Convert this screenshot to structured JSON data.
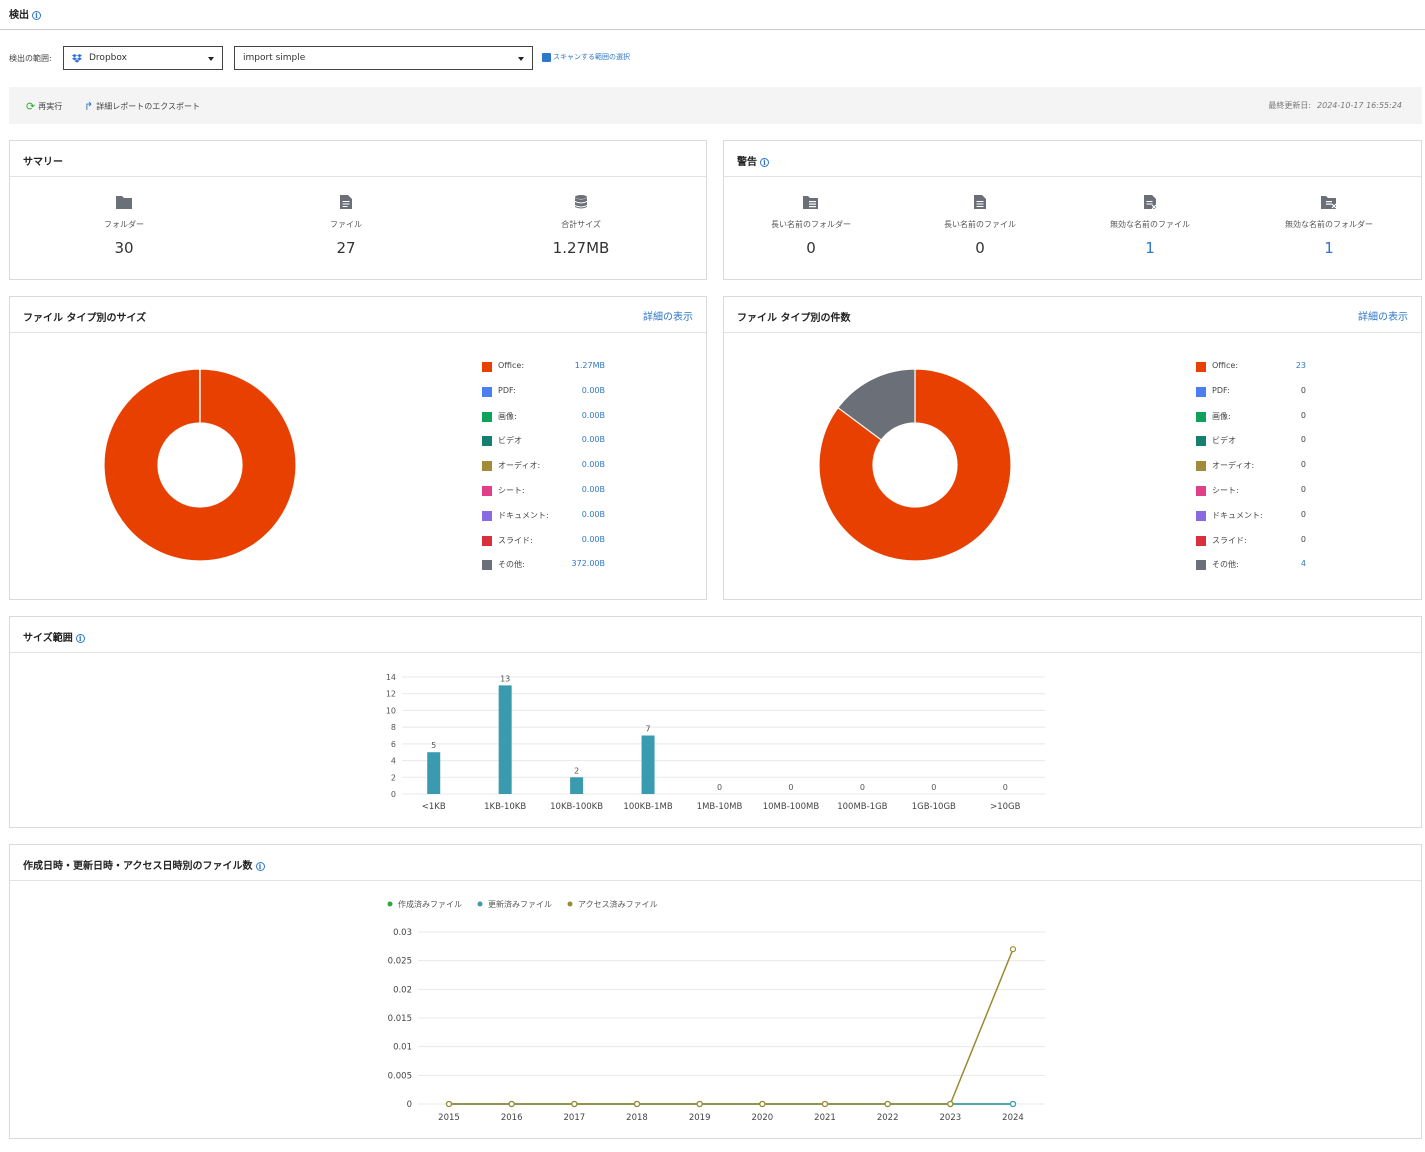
{
  "header": {
    "title": "検出"
  },
  "scope": {
    "label": "検出の範囲:",
    "source_select": "Dropbox",
    "job_select": "import simple",
    "scan_link": "スキャンする範囲の選択"
  },
  "toolbar": {
    "rerun_label": "再実行",
    "export_label": "詳細レポートのエクスポート",
    "last_updated_label": "最終更新日:",
    "last_updated_value": "2024-10-17 16:55:24"
  },
  "summary": {
    "title": "サマリー",
    "items": [
      {
        "label": "フォルダー",
        "value": "30",
        "icon": "folder-icon"
      },
      {
        "label": "ファイル",
        "value": "27",
        "icon": "file-icon"
      },
      {
        "label": "合計サイズ",
        "value": "1.27MB",
        "icon": "database-icon"
      }
    ]
  },
  "warnings": {
    "title": "警告",
    "items": [
      {
        "label": "長い名前のフォルダー",
        "value": "0",
        "icon": "long-name-folder-icon"
      },
      {
        "label": "長い名前のファイル",
        "value": "0",
        "icon": "long-name-file-icon"
      },
      {
        "label": "無効な名前のファイル",
        "value": "1",
        "icon": "invalid-name-file-icon"
      },
      {
        "label": "無効な名前のフォルダー",
        "value": "1",
        "icon": "invalid-name-folder-icon"
      }
    ]
  },
  "size_by_type": {
    "title": "ファイル タイプ別のサイズ",
    "link": "詳細の表示"
  },
  "count_by_type": {
    "title": "ファイル タイプ別の件数",
    "link": "詳細の表示"
  },
  "file_types": [
    {
      "name": "Office:",
      "color": "#e84000",
      "size": "1.27MB",
      "count": "23"
    },
    {
      "name": "PDF:",
      "color": "#4b7ff0",
      "size": "0.00B",
      "count": "0"
    },
    {
      "name": "画像:",
      "color": "#0fa05a",
      "size": "0.00B",
      "count": "0"
    },
    {
      "name": "ビデオ",
      "color": "#15806f",
      "size": "0.00B",
      "count": "0"
    },
    {
      "name": "オーディオ:",
      "color": "#a38a3a",
      "size": "0.00B",
      "count": "0"
    },
    {
      "name": "シート:",
      "color": "#e0408a",
      "size": "0.00B",
      "count": "0"
    },
    {
      "name": "ドキュメント:",
      "color": "#8a6ae0",
      "size": "0.00B",
      "count": "0"
    },
    {
      "name": "スライド:",
      "color": "#d8303c",
      "size": "0.00B",
      "count": "0"
    },
    {
      "name": "その他:",
      "color": "#6b7078",
      "size": "372.00B",
      "count": "4"
    }
  ],
  "size_range": {
    "title": "サイズ範囲"
  },
  "timeline": {
    "title": "作成日時・更新日時・アクセス日時別のファイル数"
  },
  "chart_data": [
    {
      "type": "pie",
      "title": "ファイル タイプ別のサイズ",
      "categories": [
        "Office",
        "PDF",
        "画像",
        "ビデオ",
        "オーディオ",
        "シート",
        "ドキュメント",
        "スライド",
        "その他"
      ],
      "values": [
        1270000,
        0,
        0,
        0,
        0,
        0,
        0,
        0,
        372
      ],
      "colors": [
        "#e84000",
        "#4b7ff0",
        "#0fa05a",
        "#15806f",
        "#a38a3a",
        "#e0408a",
        "#8a6ae0",
        "#d8303c",
        "#6b7078"
      ]
    },
    {
      "type": "pie",
      "title": "ファイル タイプ別の件数",
      "categories": [
        "Office",
        "PDF",
        "画像",
        "ビデオ",
        "オーディオ",
        "シート",
        "ドキュメント",
        "スライド",
        "その他"
      ],
      "values": [
        23,
        0,
        0,
        0,
        0,
        0,
        0,
        0,
        4
      ],
      "colors": [
        "#e84000",
        "#4b7ff0",
        "#0fa05a",
        "#15806f",
        "#a38a3a",
        "#e0408a",
        "#8a6ae0",
        "#d8303c",
        "#6b7078"
      ]
    },
    {
      "type": "bar",
      "title": "サイズ範囲",
      "categories": [
        "<1KB",
        "1KB-10KB",
        "10KB-100KB",
        "100KB-1MB",
        "1MB-10MB",
        "10MB-100MB",
        "100MB-1GB",
        "1GB-10GB",
        ">10GB"
      ],
      "values": [
        5,
        13,
        2,
        7,
        0,
        0,
        0,
        0,
        0
      ],
      "ylim": [
        0,
        14
      ],
      "yticks": [
        0,
        2,
        4,
        6,
        8,
        10,
        12,
        14
      ],
      "color": "#3a9ab0",
      "grid": true
    },
    {
      "type": "line",
      "title": "作成日時・更新日時・アクセス日時別のファイル数",
      "x": [
        "2015",
        "2016",
        "2017",
        "2018",
        "2019",
        "2020",
        "2021",
        "2022",
        "2023",
        "2024"
      ],
      "series": [
        {
          "name": "作成済みファイル",
          "color": "#2eaa3a",
          "values": [
            0,
            0,
            0,
            0,
            0,
            0,
            0,
            0,
            0,
            0
          ]
        },
        {
          "name": "更新済みファイル",
          "color": "#3a9ab0",
          "values": [
            0,
            0,
            0,
            0,
            0,
            0,
            0,
            0,
            0,
            0
          ]
        },
        {
          "name": "アクセス済みファイル",
          "color": "#9a8a30",
          "values": [
            0,
            0,
            0,
            0,
            0,
            0,
            0,
            0,
            0,
            0.027
          ]
        }
      ],
      "ylim": [
        0,
        0.03
      ],
      "yticks": [
        "0",
        "0.005",
        "0.01",
        "0.015",
        "0.02",
        "0.025",
        "0.03"
      ],
      "legend": "top",
      "grid": true
    }
  ]
}
